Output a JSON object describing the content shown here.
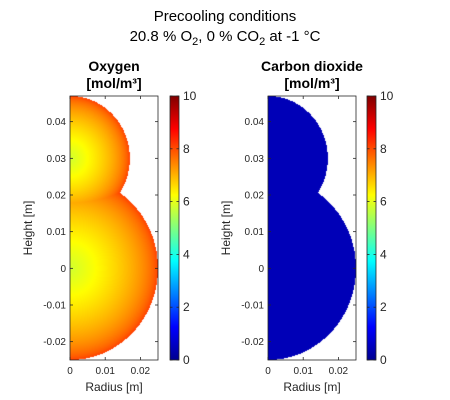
{
  "figure": {
    "title_line1": "Precooling conditions",
    "title_line2": {
      "o2_value": "20.8 % O",
      "o2_sub": "2",
      "co2_value": ",  0 % CO",
      "co2_sub": "2",
      "temperature": "  at  -1 °C"
    }
  },
  "chart_data": [
    {
      "type": "heatmap",
      "title_line1": "Oxygen",
      "title_line2": "[mol/m³]",
      "xlabel": "Radius [m]",
      "ylabel": "Height [m]",
      "xlim": [
        0,
        0.025
      ],
      "ylim": [
        -0.025,
        0.047
      ],
      "xticks": [
        0,
        0.01,
        0.02
      ],
      "xtick_labels": [
        "0",
        "0.01",
        "0.02"
      ],
      "yticks": [
        -0.02,
        -0.01,
        0,
        0.01,
        0.02,
        0.03,
        0.04
      ],
      "ytick_labels": [
        "-0.02",
        "-0.01",
        "0",
        "0.01",
        "0.02",
        "0.03",
        "0.04"
      ],
      "shape": {
        "upper_circle": {
          "center_r": 0,
          "center_z": 0.03,
          "radius": 0.017
        },
        "lower_circle": {
          "center_r": 0,
          "center_z": 0.0,
          "radius": 0.025
        }
      },
      "field": {
        "center_value": 5.8,
        "boundary_value": 8.2,
        "center_r": 0,
        "center_z": 0.006
      },
      "colorbar": {
        "min": 0,
        "max": 10,
        "ticks": [
          0,
          2,
          4,
          6,
          8,
          10
        ],
        "colormap": "jet"
      }
    },
    {
      "type": "heatmap",
      "title_line1": "Carbon dioxide",
      "title_line2": "[mol/m³]",
      "xlabel": "Radius [m]",
      "ylabel": "Height [m]",
      "xlim": [
        0,
        0.025
      ],
      "ylim": [
        -0.025,
        0.047
      ],
      "xticks": [
        0,
        0.01,
        0.02
      ],
      "xtick_labels": [
        "0",
        "0.01",
        "0.02"
      ],
      "yticks": [
        -0.02,
        -0.01,
        0,
        0.01,
        0.02,
        0.03,
        0.04
      ],
      "ytick_labels": [
        "-0.02",
        "-0.01",
        "0",
        "0.01",
        "0.02",
        "0.03",
        "0.04"
      ],
      "shape": {
        "upper_circle": {
          "center_r": 0,
          "center_z": 0.03,
          "radius": 0.017
        },
        "lower_circle": {
          "center_r": 0,
          "center_z": 0.0,
          "radius": 0.025
        }
      },
      "field": {
        "center_value": 0.45,
        "boundary_value": 0.45,
        "center_r": 0,
        "center_z": 0.006
      },
      "colorbar": {
        "min": 0,
        "max": 10,
        "ticks": [
          0,
          2,
          4,
          6,
          8,
          10
        ],
        "colormap": "jet"
      }
    }
  ]
}
